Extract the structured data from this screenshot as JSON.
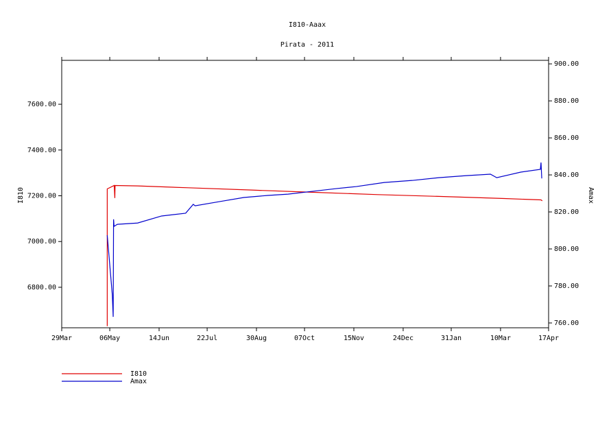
{
  "chart_data": {
    "type": "line",
    "title": "I810-Aaax",
    "subtitle": "Pirata - 2011",
    "y_label": "I810",
    "y2_label": "Amax",
    "xlim": [
      0,
      385
    ],
    "xticks": [
      {
        "value": 0,
        "label": "29Mar"
      },
      {
        "value": 38,
        "label": "06May"
      },
      {
        "value": 77,
        "label": "14Jun"
      },
      {
        "value": 115,
        "label": "22Jul"
      },
      {
        "value": 154,
        "label": "30Aug"
      },
      {
        "value": 192,
        "label": "07Oct"
      },
      {
        "value": 231,
        "label": "15Nov"
      },
      {
        "value": 270,
        "label": "24Dec"
      },
      {
        "value": 308,
        "label": "31Jan"
      },
      {
        "value": 347,
        "label": "10Mar"
      },
      {
        "value": 385,
        "label": "17Apr"
      }
    ],
    "ylim": [
      6623,
      7792
    ],
    "yticks": [
      {
        "value": 6800,
        "label": "6800.00"
      },
      {
        "value": 7000,
        "label": "7000.00"
      },
      {
        "value": 7200,
        "label": "7200.00"
      },
      {
        "value": 7400,
        "label": "7400.00"
      },
      {
        "value": 7600,
        "label": "7600.00"
      }
    ],
    "y2lim": [
      757.4,
      901.9
    ],
    "y2ticks": [
      {
        "value": 760,
        "label": "760.00"
      },
      {
        "value": 780,
        "label": "780.00"
      },
      {
        "value": 800,
        "label": "800.00"
      },
      {
        "value": 820,
        "label": "820.00"
      },
      {
        "value": 840,
        "label": "840.00"
      },
      {
        "value": 860,
        "label": "860.00"
      },
      {
        "value": 880,
        "label": "880.00"
      },
      {
        "value": 900,
        "label": "900.00"
      }
    ],
    "series": [
      {
        "name": "I810",
        "color": "#e00000",
        "x": [
          36,
          36,
          41.5,
          42,
          42.2,
          60,
          100,
          150,
          200,
          250,
          300,
          350,
          379,
          380
        ],
        "values": [
          6630,
          7230,
          7245,
          7190,
          7245,
          7243,
          7235,
          7225,
          7215,
          7205,
          7197,
          7188,
          7182,
          7178
        ]
      },
      {
        "name": "Amax",
        "color": "#0000cc",
        "axis": "y2",
        "x": [
          36,
          40,
          40.7,
          41,
          41.4,
          44,
          60,
          79,
          98,
          104,
          105.5,
          125,
          144,
          163,
          179,
          198,
          217,
          233,
          255,
          277,
          298,
          320,
          339,
          344,
          363,
          378.5,
          379,
          379.6
        ],
        "values": [
          807.4,
          775.2,
          763.3,
          816,
          812.2,
          813.3,
          814,
          817.8,
          819.3,
          824.1,
          823.3,
          825.6,
          827.8,
          828.9,
          829.6,
          831.1,
          832.6,
          833.7,
          835.9,
          837,
          838.5,
          839.6,
          840.4,
          838.5,
          841.5,
          843,
          846.7,
          838.1
        ]
      }
    ]
  }
}
